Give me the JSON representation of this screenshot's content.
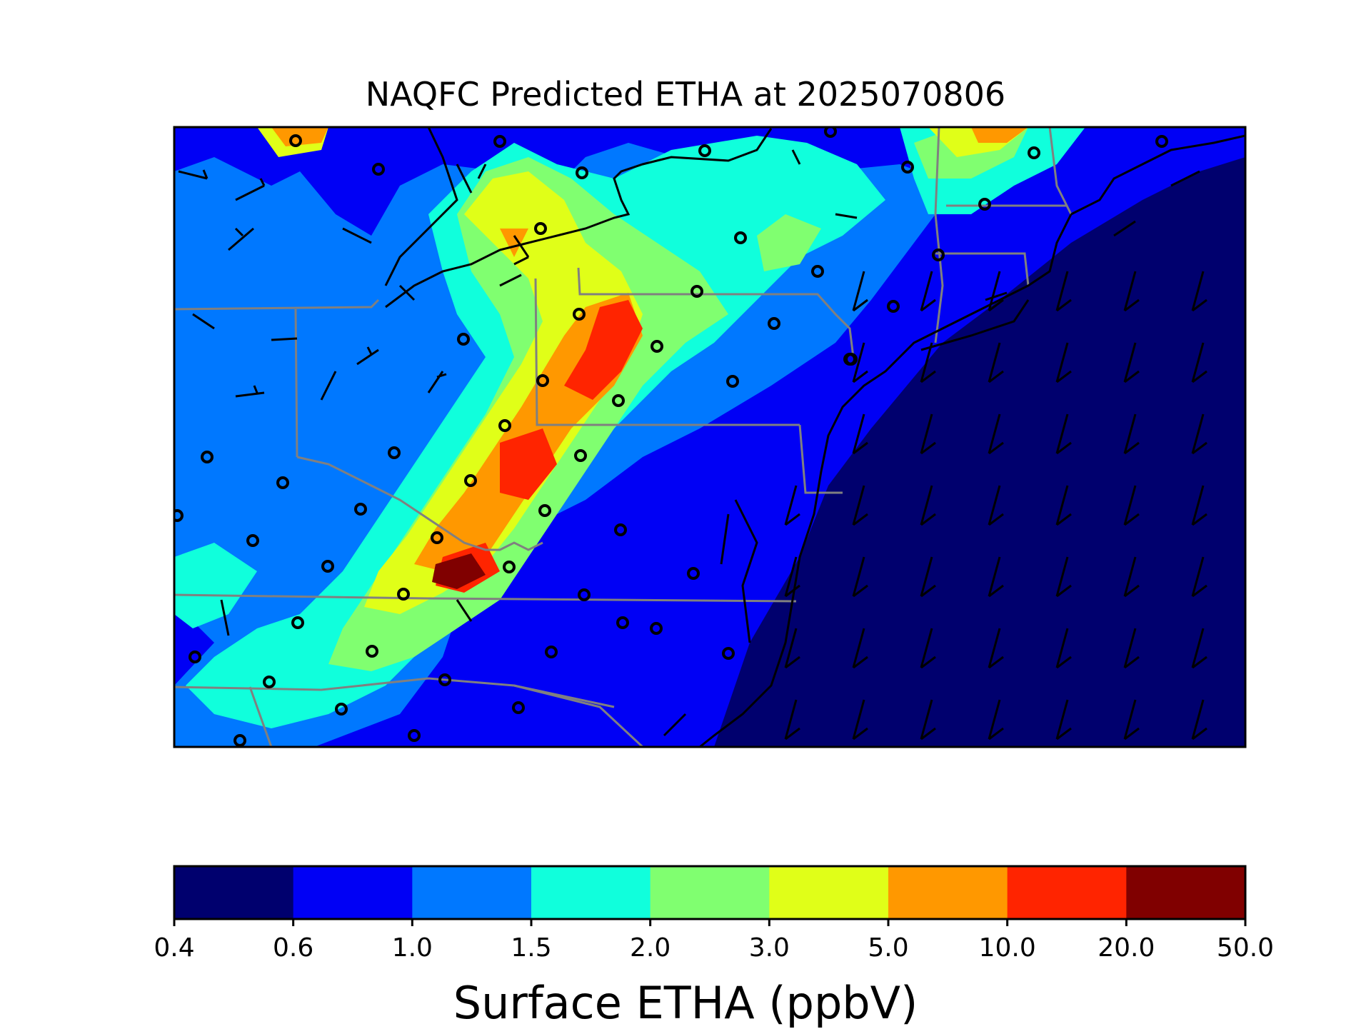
{
  "title": "NAQFC Predicted ETHA at 2025070806",
  "colorbar": {
    "label": "Surface ETHA (ppbV)",
    "ticks": [
      "0.4",
      "0.6",
      "1.0",
      "1.5",
      "2.0",
      "3.0",
      "5.0",
      "10.0",
      "20.0",
      "50.0"
    ],
    "colors": [
      "#00006e",
      "#0000f5",
      "#0078ff",
      "#10ffdc",
      "#80ff70",
      "#e0ff18",
      "#ff9800",
      "#ff2400",
      "#800000"
    ]
  },
  "map": {
    "background_class_color": "#0000f5",
    "land_colors": {
      "class_0.4_0.6": "#00006e",
      "class_0.6_1.0": "#0000f5",
      "class_1.0_1.5": "#0078ff",
      "class_1.5_2.0": "#10ffdc",
      "class_2.0_3.0": "#80ff70",
      "class_3.0_5.0": "#e0ff18",
      "class_5.0_10.0": "#ff9800",
      "class_10.0_20.0": "#ff2400",
      "class_20.0_50.0": "#800000"
    },
    "border_color": "#808080",
    "coast_color": "#000000"
  }
}
